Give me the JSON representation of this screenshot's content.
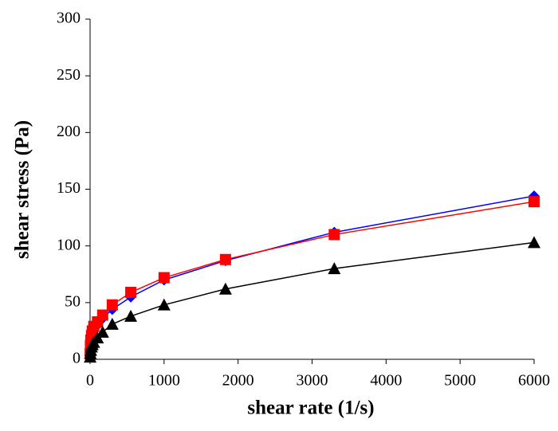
{
  "chart_data": {
    "type": "line",
    "x_label": "shear rate (1/s)",
    "y_label": "shear stress (Pa)",
    "x": [
      1,
      5,
      10,
      20,
      30,
      50,
      100,
      170,
      300,
      550,
      1000,
      1830,
      3300,
      6000
    ],
    "series": [
      {
        "color": "#0000ff",
        "marker": "diamond",
        "values": [
          4,
          10,
          15,
          19,
          22,
          26,
          30,
          36,
          44,
          55,
          70,
          87,
          112,
          144
        ]
      },
      {
        "color": "#ff0000",
        "marker": "square",
        "values": [
          5,
          12,
          17,
          21,
          25,
          29,
          33,
          39,
          48,
          59,
          72,
          88,
          110,
          139
        ]
      },
      {
        "color": "#000000",
        "marker": "triangle",
        "values": [
          2,
          5,
          8,
          11,
          13,
          15,
          19,
          24,
          31,
          38,
          48,
          62,
          80,
          103
        ]
      }
    ],
    "xlim": [
      0,
      6000
    ],
    "xticks": [
      0,
      1000,
      2000,
      3000,
      4000,
      5000,
      6000
    ],
    "ylim": [
      0,
      300
    ],
    "yticks": [
      0,
      50,
      100,
      150,
      200,
      250,
      300
    ]
  }
}
